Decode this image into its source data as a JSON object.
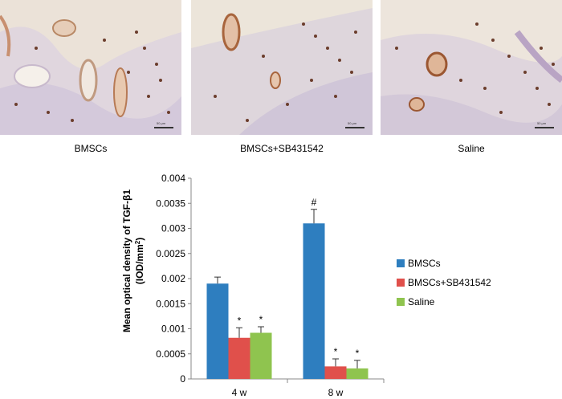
{
  "panels": [
    {
      "label": "BMSCs",
      "scale_bar": "50 μm"
    },
    {
      "label": "BMSCs+SB431542",
      "scale_bar": "50 μm"
    },
    {
      "label": "Saline",
      "scale_bar": "50 μm"
    }
  ],
  "colors": {
    "tissue_bg": "#e9dfd4",
    "cell_brown": "#8a4e2a",
    "purple_stain": "#b7a7c6"
  },
  "chart_data": {
    "type": "bar",
    "categories": [
      "4 w",
      "8 w"
    ],
    "series": [
      {
        "name": "BMSCs",
        "color": "#2e7ebf",
        "values": [
          0.0019,
          0.0031
        ],
        "errors": [
          0.00013,
          0.00028
        ],
        "marks": [
          "",
          "#"
        ]
      },
      {
        "name": "BMSCs+SB431542",
        "color": "#e0504b",
        "values": [
          0.00082,
          0.00025
        ],
        "errors": [
          0.0002,
          0.00015
        ],
        "marks": [
          "*",
          "*"
        ]
      },
      {
        "name": "Saline",
        "color": "#8fc44f",
        "values": [
          0.00092,
          0.00021
        ],
        "errors": [
          0.00012,
          0.00016
        ],
        "marks": [
          "*",
          "*"
        ]
      }
    ],
    "ylabel_line1": "Mean optical density of TGF-β1",
    "ylabel_line2_main": "(IOD/mm",
    "ylabel_line2_sup": "2",
    "ylabel_line2_end": ")",
    "ylim": [
      0,
      0.004
    ],
    "yticks": [
      "0",
      "0.0005",
      "0.001",
      "0.0015",
      "0.002",
      "0.0025",
      "0.003",
      "0.0035",
      "0.004"
    ],
    "legend_position": "right"
  }
}
